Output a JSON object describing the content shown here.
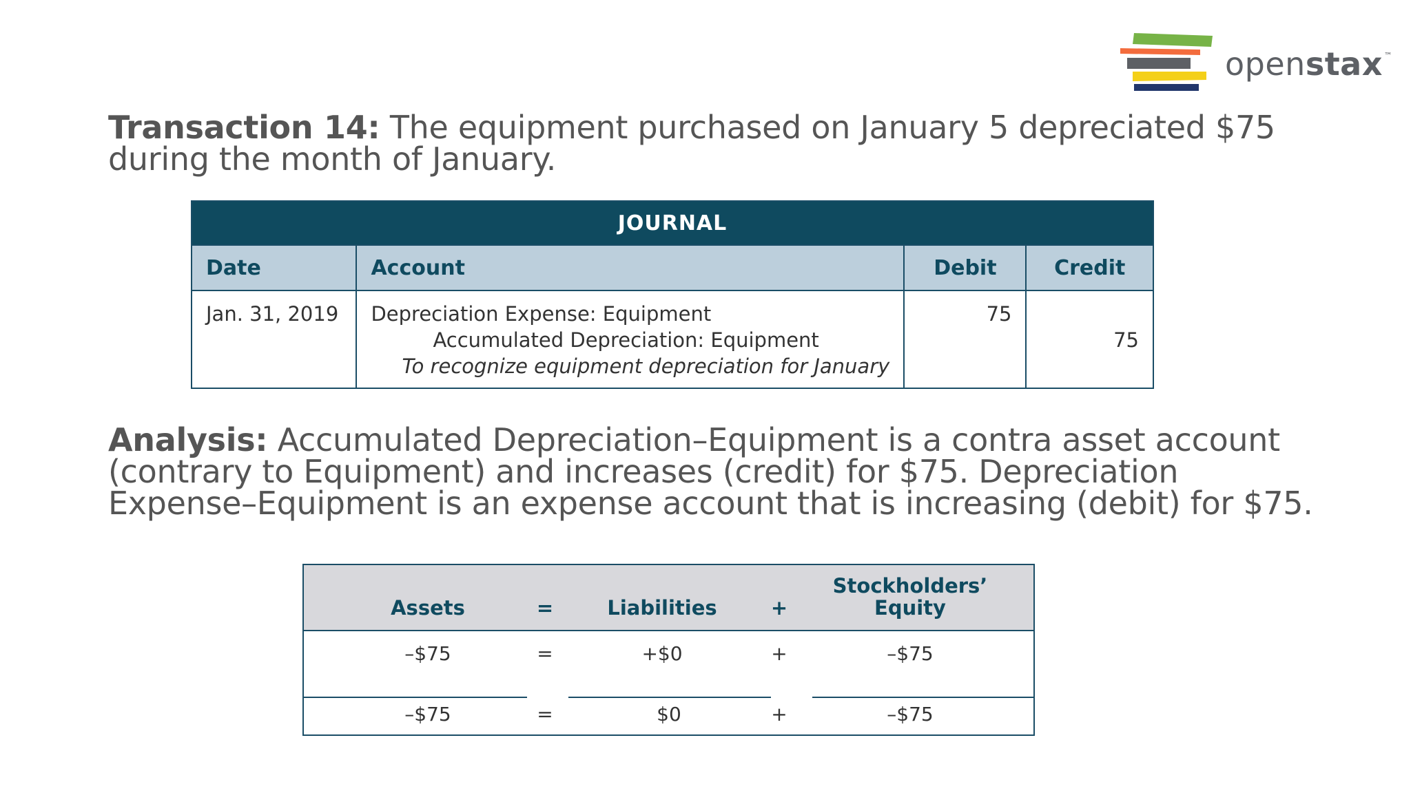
{
  "logo": {
    "text_light": "open",
    "text_bold": "stax",
    "trademark": "™",
    "colors": {
      "green": "#77b347",
      "orange": "#f36c3d",
      "gray": "#5d6065",
      "yellow": "#f4d019",
      "navy": "#21366b"
    }
  },
  "transaction": {
    "label": "Transaction 14:",
    "text": " The equipment purchased on January 5 depreciated $75 during the month of January."
  },
  "journal": {
    "title": "JOURNAL",
    "headers": {
      "date": "Date",
      "account": "Account",
      "debit": "Debit",
      "credit": "Credit"
    },
    "entry": {
      "date": "Jan. 31, 2019",
      "debit_account": "Depreciation Expense: Equipment",
      "credit_account": "Accumulated Depreciation: Equipment",
      "note": "To recognize equipment depreciation for January",
      "debit": "75",
      "credit": "75"
    }
  },
  "analysis": {
    "label": "Analysis:",
    "text": " Accumulated Depreciation–Equipment is a contra asset account (contrary to Equipment) and increases (credit) for $75. Depreciation Expense–Equipment is an expense account that is increasing (debit) for $75."
  },
  "equation": {
    "headers": {
      "assets": "Assets",
      "equals": "=",
      "liabilities": "Liabilities",
      "plus": "+",
      "equity_line1": "Stockholders’",
      "equity_line2": "Equity"
    },
    "change_row": {
      "assets": "–$75",
      "equals": "=",
      "liabilities": "+$0",
      "plus": "+",
      "equity": "–$75"
    },
    "total_row": {
      "assets": "–$75",
      "equals": "=",
      "liabilities": "$0",
      "plus": "+",
      "equity": "–$75"
    }
  },
  "colors": {
    "journal_title_bg": "#0f4a5f",
    "journal_header_bg": "#bccfdc",
    "equation_header_bg": "#d8d8dc",
    "border": "#1a4d66",
    "body_text": "#555555"
  }
}
